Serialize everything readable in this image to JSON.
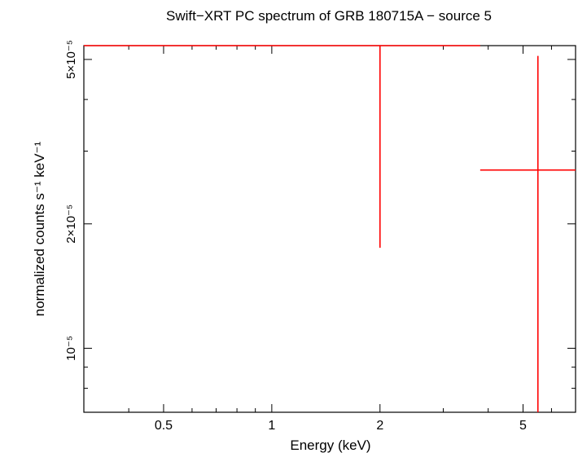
{
  "chart_data": {
    "type": "scatter",
    "title": "Swift−XRT PC spectrum of GRB 180715A − source 5",
    "xlabel": "Energy (keV)",
    "ylabel": "normalized counts s⁻¹ keV⁻¹",
    "x_scale": "log",
    "y_scale": "log",
    "xlim": [
      0.3,
      7.0
    ],
    "ylim": [
      7e-06,
      5.4e-05
    ],
    "grid": false,
    "x_ticks": [
      {
        "value": 0.5,
        "label": "0.5"
      },
      {
        "value": 1,
        "label": "1"
      },
      {
        "value": 2,
        "label": "2"
      },
      {
        "value": 5,
        "label": "5"
      }
    ],
    "y_ticks": [
      {
        "value": 1e-05,
        "label": "10⁻⁵"
      },
      {
        "value": 2e-05,
        "label": "2×10⁻⁵"
      },
      {
        "value": 5e-05,
        "label": "5×10⁻⁵"
      }
    ],
    "series": [
      {
        "color": "#ff0000",
        "points": [
          {
            "x": 2.0,
            "y": 5.4e-05,
            "x_low": 0.3,
            "x_high": 3.8,
            "y_low": 1.75e-05,
            "y_high": 5.4e-05
          },
          {
            "x": 5.5,
            "y": 2.7e-05,
            "x_low": 3.8,
            "x_high": 7.0,
            "y_low": 7e-06,
            "y_high": 5.1e-05
          }
        ]
      }
    ]
  }
}
